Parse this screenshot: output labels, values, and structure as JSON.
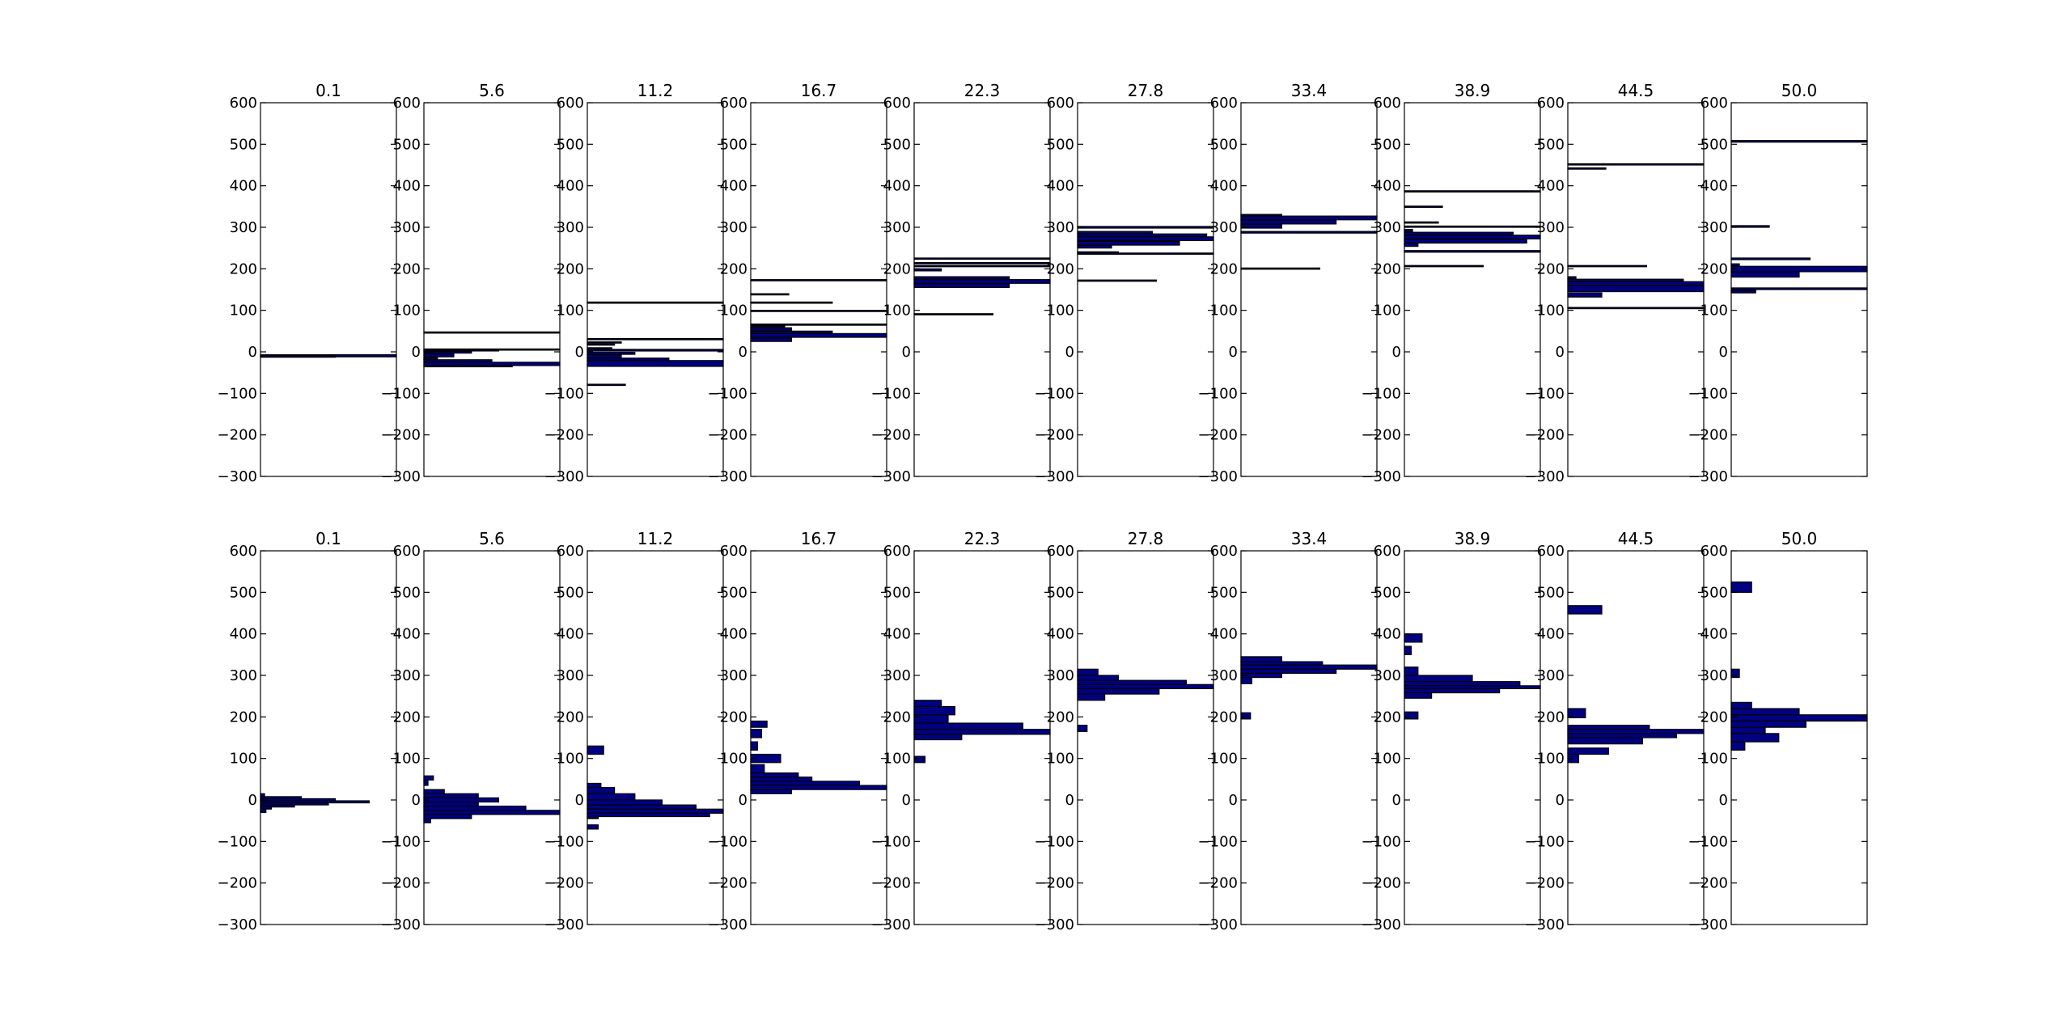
{
  "chart_data": {
    "type": "histogram-grid",
    "rows": 2,
    "cols": 10,
    "xlim": [
      0,
      1
    ],
    "ylim": [
      -300,
      600
    ],
    "yticks": [
      -300,
      -200,
      -100,
      0,
      100,
      200,
      300,
      400,
      500,
      600
    ],
    "ytick_labels": [
      "−300",
      "−200",
      "−100",
      "0",
      "100",
      "200",
      "300",
      "400",
      "500",
      "600"
    ],
    "colors": {
      "bar_fill": "#000080",
      "bar_edge": "#000000",
      "axes": "#000000"
    },
    "panels": [
      {
        "row": 0,
        "title": "0.1",
        "bars": [
          [
            -12,
            -7,
            1.0
          ],
          [
            -11,
            -10,
            0.55
          ]
        ]
      },
      {
        "row": 0,
        "title": "5.6",
        "bars": [
          [
            46,
            48,
            1.0
          ],
          [
            5,
            7,
            1.0
          ],
          [
            3,
            5,
            0.55
          ],
          [
            -3,
            1,
            0.35
          ],
          [
            -12,
            -5,
            0.22
          ],
          [
            -18,
            -14,
            0.1
          ],
          [
            -24,
            -19,
            0.5
          ],
          [
            -33,
            -25,
            1.0
          ],
          [
            -36,
            -33,
            0.65
          ]
        ]
      },
      {
        "row": 0,
        "title": "11.2",
        "bars": [
          [
            118,
            120,
            1.0
          ],
          [
            30,
            32,
            1.0
          ],
          [
            22,
            24,
            0.25
          ],
          [
            17,
            19,
            0.2
          ],
          [
            8,
            10,
            0.18
          ],
          [
            2,
            6,
            1.0
          ],
          [
            -6,
            -1,
            0.35
          ],
          [
            -14,
            -7,
            0.25
          ],
          [
            -20,
            -15,
            0.6
          ],
          [
            -35,
            -21,
            1.0
          ],
          [
            -80,
            -78,
            0.28
          ]
        ]
      },
      {
        "row": 0,
        "title": "16.7",
        "bars": [
          [
            172,
            174,
            1.0
          ],
          [
            138,
            140,
            0.28
          ],
          [
            118,
            120,
            0.6
          ],
          [
            98,
            100,
            1.0
          ],
          [
            65,
            67,
            1.0
          ],
          [
            60,
            63,
            0.25
          ],
          [
            52,
            58,
            0.3
          ],
          [
            45,
            50,
            0.6
          ],
          [
            35,
            44,
            1.0
          ],
          [
            25,
            33,
            0.3
          ]
        ]
      },
      {
        "row": 0,
        "title": "22.3",
        "bars": [
          [
            223,
            226,
            1.0
          ],
          [
            212,
            215,
            1.0
          ],
          [
            205,
            208,
            1.0
          ],
          [
            195,
            200,
            0.2
          ],
          [
            175,
            181,
            0.7
          ],
          [
            165,
            174,
            1.0
          ],
          [
            155,
            164,
            0.7
          ],
          [
            90,
            92,
            0.58
          ]
        ]
      },
      {
        "row": 0,
        "title": "27.8",
        "bars": [
          [
            298,
            302,
            1.0
          ],
          [
            285,
            290,
            0.55
          ],
          [
            278,
            284,
            0.95
          ],
          [
            268,
            277,
            1.0
          ],
          [
            257,
            266,
            0.75
          ],
          [
            250,
            256,
            0.25
          ],
          [
            238,
            241,
            0.3
          ],
          [
            236,
            238,
            1.0
          ],
          [
            170,
            173,
            0.58
          ]
        ]
      },
      {
        "row": 0,
        "title": "33.4",
        "bars": [
          [
            328,
            331,
            0.3
          ],
          [
            318,
            327,
            1.0
          ],
          [
            308,
            317,
            0.7
          ],
          [
            298,
            307,
            0.3
          ],
          [
            286,
            290,
            1.0
          ],
          [
            199,
            202,
            0.58
          ]
        ]
      },
      {
        "row": 0,
        "title": "38.9",
        "bars": [
          [
            385,
            388,
            1.0
          ],
          [
            348,
            351,
            0.28
          ],
          [
            310,
            313,
            0.25
          ],
          [
            300,
            303,
            1.0
          ],
          [
            290,
            295,
            0.06
          ],
          [
            282,
            288,
            0.8
          ],
          [
            272,
            281,
            1.0
          ],
          [
            262,
            271,
            0.9
          ],
          [
            254,
            261,
            0.1
          ],
          [
            240,
            244,
            1.0
          ],
          [
            205,
            208,
            0.58
          ]
        ]
      },
      {
        "row": 0,
        "title": "44.5",
        "bars": [
          [
            450,
            453,
            1.0
          ],
          [
            440,
            443,
            0.28
          ],
          [
            205,
            208,
            0.58
          ],
          [
            177,
            181,
            0.06
          ],
          [
            170,
            175,
            0.85
          ],
          [
            160,
            169,
            1.0
          ],
          [
            145,
            159,
            1.0
          ],
          [
            132,
            142,
            0.25
          ],
          [
            104,
            107,
            1.0
          ]
        ]
      },
      {
        "row": 0,
        "title": "50.0",
        "bars": [
          [
            505,
            509,
            1.0
          ],
          [
            300,
            304,
            0.28
          ],
          [
            222,
            226,
            0.58
          ],
          [
            207,
            212,
            0.06
          ],
          [
            193,
            206,
            1.0
          ],
          [
            180,
            192,
            0.5
          ],
          [
            150,
            154,
            1.0
          ],
          [
            142,
            148,
            0.18
          ]
        ]
      },
      {
        "row": 1,
        "title": "0.1",
        "bars": [
          [
            8,
            15,
            0.03
          ],
          [
            3,
            8,
            0.3
          ],
          [
            -2,
            3,
            0.55
          ],
          [
            -7,
            -2,
            0.8
          ],
          [
            -12,
            -7,
            0.5
          ],
          [
            -17,
            -12,
            0.25
          ],
          [
            -22,
            -17,
            0.08
          ],
          [
            -30,
            -22,
            0.04
          ]
        ]
      },
      {
        "row": 1,
        "title": "5.6",
        "bars": [
          [
            48,
            58,
            0.07
          ],
          [
            35,
            48,
            0.03
          ],
          [
            15,
            25,
            0.15
          ],
          [
            5,
            15,
            0.4
          ],
          [
            -5,
            5,
            0.55
          ],
          [
            -15,
            -5,
            0.4
          ],
          [
            -25,
            -15,
            0.75
          ],
          [
            -35,
            -25,
            1.0
          ],
          [
            -45,
            -35,
            0.35
          ],
          [
            -55,
            -45,
            0.05
          ]
        ]
      },
      {
        "row": 1,
        "title": "11.2",
        "bars": [
          [
            110,
            130,
            0.12
          ],
          [
            30,
            40,
            0.1
          ],
          [
            15,
            30,
            0.2
          ],
          [
            0,
            15,
            0.35
          ],
          [
            -12,
            0,
            0.55
          ],
          [
            -22,
            -12,
            0.8
          ],
          [
            -32,
            -22,
            1.0
          ],
          [
            -40,
            -32,
            0.9
          ],
          [
            -45,
            -40,
            0.08
          ],
          [
            -70,
            -60,
            0.08
          ]
        ]
      },
      {
        "row": 1,
        "title": "16.7",
        "bars": [
          [
            175,
            190,
            0.12
          ],
          [
            150,
            170,
            0.08
          ],
          [
            120,
            140,
            0.05
          ],
          [
            90,
            110,
            0.22
          ],
          [
            65,
            85,
            0.1
          ],
          [
            55,
            65,
            0.35
          ],
          [
            45,
            55,
            0.45
          ],
          [
            35,
            45,
            0.8
          ],
          [
            25,
            35,
            1.0
          ],
          [
            15,
            25,
            0.3
          ]
        ]
      },
      {
        "row": 1,
        "title": "22.3",
        "bars": [
          [
            225,
            240,
            0.2
          ],
          [
            205,
            225,
            0.3
          ],
          [
            185,
            205,
            0.25
          ],
          [
            170,
            185,
            0.8
          ],
          [
            158,
            170,
            1.0
          ],
          [
            145,
            158,
            0.35
          ],
          [
            90,
            105,
            0.08
          ]
        ]
      },
      {
        "row": 1,
        "title": "27.8",
        "bars": [
          [
            300,
            315,
            0.15
          ],
          [
            288,
            300,
            0.3
          ],
          [
            278,
            288,
            0.8
          ],
          [
            268,
            278,
            1.0
          ],
          [
            255,
            268,
            0.6
          ],
          [
            240,
            255,
            0.2
          ],
          [
            165,
            180,
            0.07
          ]
        ]
      },
      {
        "row": 1,
        "title": "33.4",
        "bars": [
          [
            333,
            345,
            0.3
          ],
          [
            325,
            333,
            0.6
          ],
          [
            315,
            325,
            1.0
          ],
          [
            305,
            315,
            0.7
          ],
          [
            295,
            305,
            0.3
          ],
          [
            280,
            295,
            0.08
          ],
          [
            195,
            210,
            0.07
          ]
        ]
      },
      {
        "row": 1,
        "title": "38.9",
        "bars": [
          [
            380,
            400,
            0.13
          ],
          [
            350,
            370,
            0.05
          ],
          [
            300,
            320,
            0.1
          ],
          [
            285,
            300,
            0.5
          ],
          [
            275,
            285,
            0.85
          ],
          [
            268,
            275,
            1.0
          ],
          [
            258,
            268,
            0.7
          ],
          [
            245,
            258,
            0.2
          ],
          [
            195,
            212,
            0.1
          ]
        ]
      },
      {
        "row": 1,
        "title": "44.5",
        "bars": [
          [
            448,
            468,
            0.25
          ],
          [
            198,
            220,
            0.13
          ],
          [
            170,
            180,
            0.6
          ],
          [
            160,
            170,
            1.0
          ],
          [
            150,
            160,
            0.8
          ],
          [
            135,
            150,
            0.55
          ],
          [
            110,
            125,
            0.3
          ],
          [
            90,
            110,
            0.08
          ]
        ]
      },
      {
        "row": 1,
        "title": "50.0",
        "bars": [
          [
            500,
            525,
            0.15
          ],
          [
            295,
            315,
            0.06
          ],
          [
            220,
            235,
            0.15
          ],
          [
            205,
            220,
            0.5
          ],
          [
            190,
            205,
            1.0
          ],
          [
            175,
            190,
            0.55
          ],
          [
            160,
            175,
            0.25
          ],
          [
            140,
            160,
            0.35
          ],
          [
            120,
            140,
            0.1
          ]
        ]
      }
    ]
  }
}
